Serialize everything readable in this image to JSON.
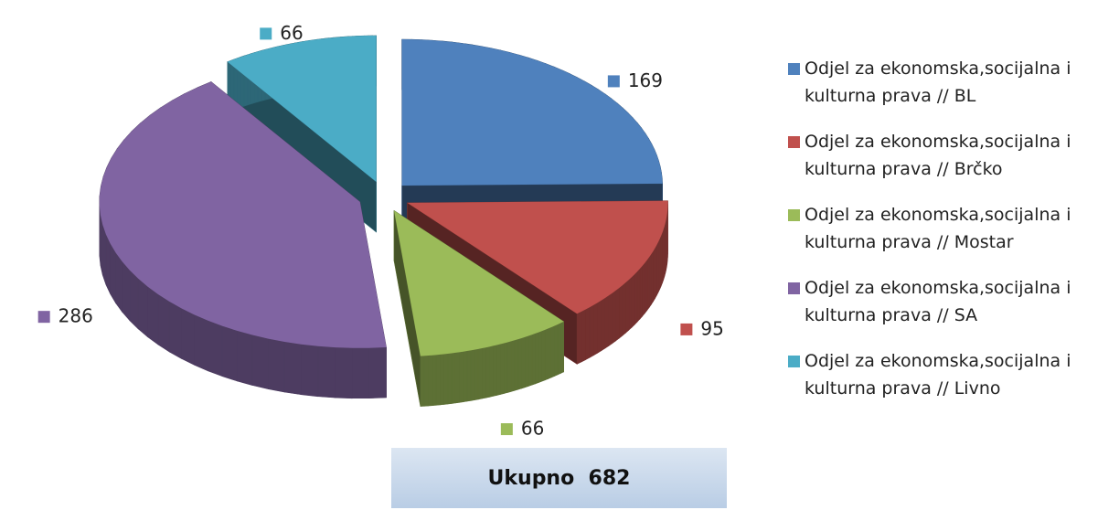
{
  "chart_data": {
    "type": "pie3d",
    "categories": [
      "Odjel za ekonomska,socijalna i kulturna prava // BL",
      "Odjel za ekonomska,socijalna i kulturna prava // Brčko",
      "Odjel za ekonomska,socijalna i kulturna prava // Mostar",
      "Odjel za ekonomska,socijalna i kulturna prava // SA",
      "Odjel za ekonomska,socijalna i kulturna prava // Livno"
    ],
    "values": [
      169,
      95,
      66,
      286,
      66
    ],
    "colors": [
      "#4f81bd",
      "#c0504d",
      "#9bbb59",
      "#8064a2",
      "#4bacc6"
    ],
    "legend": "right",
    "annotation": "Ukupno  682"
  }
}
